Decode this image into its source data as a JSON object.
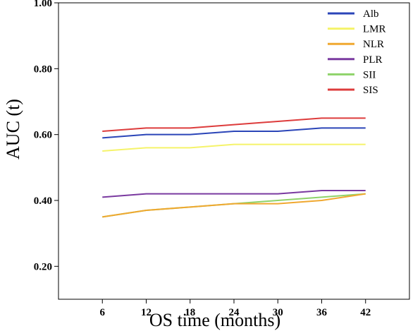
{
  "chart_data": {
    "type": "line",
    "xlabel": "OS time (months)",
    "ylabel": "AUC (t)",
    "x": [
      6,
      12,
      18,
      24,
      30,
      36,
      42
    ],
    "x_tick_labels": [
      "6",
      "12",
      "18",
      "24",
      "30",
      "36",
      "42"
    ],
    "y_tick_labels": [
      "0.20",
      "0.40",
      "0.60",
      "0.80",
      "1.00"
    ],
    "ylim": [
      0.1,
      1.0
    ],
    "xlim": [
      0,
      48
    ],
    "grid": false,
    "legend_position": "top-right",
    "series": [
      {
        "name": "Alb",
        "color": "#2b45b8",
        "values": [
          0.59,
          0.6,
          0.6,
          0.61,
          0.61,
          0.62,
          0.62
        ]
      },
      {
        "name": "LMR",
        "color": "#f5f36a",
        "values": [
          0.55,
          0.56,
          0.56,
          0.57,
          0.57,
          0.57,
          0.57
        ]
      },
      {
        "name": "NLR",
        "color": "#f0a830",
        "values": [
          0.35,
          0.37,
          0.38,
          0.39,
          0.39,
          0.4,
          0.42
        ]
      },
      {
        "name": "PLR",
        "color": "#7a3aa0",
        "values": [
          0.41,
          0.42,
          0.42,
          0.42,
          0.42,
          0.43,
          0.43
        ]
      },
      {
        "name": "SII",
        "color": "#8ed36a",
        "values": [
          0.35,
          0.37,
          0.38,
          0.39,
          0.4,
          0.41,
          0.42
        ]
      },
      {
        "name": "SIS",
        "color": "#dd3c3c",
        "values": [
          0.61,
          0.62,
          0.62,
          0.63,
          0.64,
          0.65,
          0.65
        ]
      }
    ]
  }
}
